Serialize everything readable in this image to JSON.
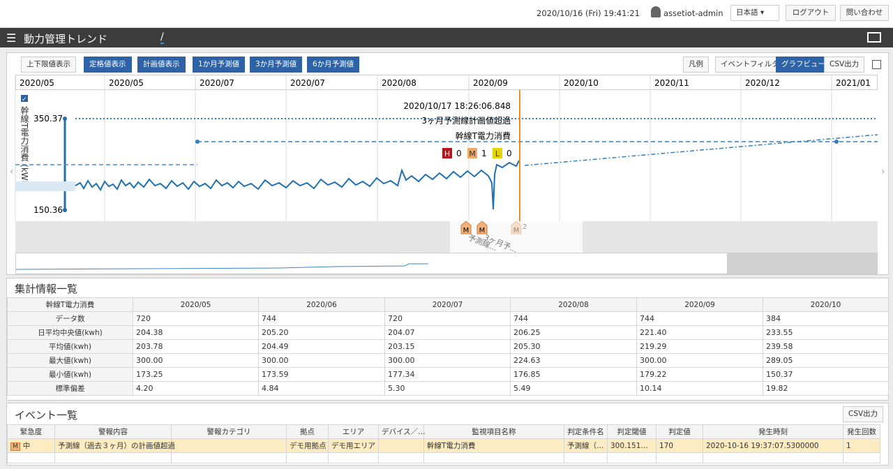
{
  "topbar": {
    "datetime": "2020/10/16 (Fri) 19:41:21",
    "user": "assetiot-admin",
    "language": "日本語",
    "logout": "ログアウト",
    "contact": "問い合わせ"
  },
  "header": {
    "title": "動力管理トレンド",
    "path": "/"
  },
  "toolbar": {
    "left": [
      {
        "label": "上下限値表示",
        "active": false
      },
      {
        "label": "定格値表示",
        "active": true
      },
      {
        "label": "計画値表示",
        "active": true
      },
      {
        "label": "1か月予測値",
        "active": true
      },
      {
        "label": "3か月予測値",
        "active": true
      },
      {
        "label": "6か月予測値",
        "active": true
      }
    ],
    "right": [
      {
        "label": "凡例",
        "active": false
      },
      {
        "label": "イベントフィルタ",
        "active": false
      },
      {
        "label": "グラフビュー",
        "active": true
      },
      {
        "label": "CSV出力",
        "active": false
      }
    ]
  },
  "timeline": [
    "2020/05",
    "2020/05",
    "2020/07",
    "2020/07",
    "2020/08",
    "2020/09",
    "2020/10",
    "2020/11",
    "2020/12",
    "2021/01"
  ],
  "trend": {
    "axis_label": "幹線T電力消費 (kWh)",
    "max": "350.37",
    "min": "150.36",
    "tooltip": {
      "time": "2020/10/17 18:26:06.848",
      "event": "3ヶ月予測線計画値超過",
      "item": "幹線T電力消費",
      "counts": [
        {
          "level": "H",
          "count": "0"
        },
        {
          "level": "M",
          "count": "1"
        },
        {
          "level": "L",
          "count": "0"
        }
      ]
    },
    "markers": [
      {
        "badge": "M",
        "label": "予測線..."
      },
      {
        "badge": "M",
        "label": "3ヶ月予..."
      },
      {
        "badge": "M",
        "label": "2"
      }
    ]
  },
  "stats": {
    "title": "集計情報一覧",
    "header": [
      "幹線T電力消費",
      "2020/05",
      "2020/06",
      "2020/07",
      "2020/08",
      "2020/09",
      "2020/10"
    ],
    "rows": [
      [
        "データ数",
        "720",
        "744",
        "720",
        "744",
        "744",
        "384"
      ],
      [
        "日平均中央値(kwh)",
        "204.38",
        "205.20",
        "204.07",
        "206.25",
        "221.40",
        "233.55"
      ],
      [
        "平均値(kwh)",
        "203.78",
        "204.49",
        "203.15",
        "205.30",
        "219.29",
        "239.58"
      ],
      [
        "最大値(kwh)",
        "300.00",
        "300.00",
        "300.00",
        "224.63",
        "300.00",
        "289.05"
      ],
      [
        "最小値(kwh)",
        "173.25",
        "173.59",
        "177.34",
        "176.85",
        "179.22",
        "150.37"
      ],
      [
        "標準偏差",
        "4.20",
        "4.84",
        "5.30",
        "5.49",
        "10.14",
        "19.82"
      ]
    ]
  },
  "events": {
    "title": "イベント一覧",
    "csv": "CSV出力",
    "columns": [
      "緊急度",
      "警報内容",
      "警報カテゴリ",
      "拠点",
      "エリア",
      "デバイス／…",
      "監視項目名称",
      "判定条件名",
      "判定閾値",
      "判定値",
      "発生時刻",
      "発生回数"
    ],
    "rows": [
      {
        "badge": "M",
        "cells": [
          "中",
          "予測線（過去３ヶ月）の計画値超過",
          null,
          "デモ用拠点",
          "デモ用エリア",
          null,
          "幹線T電力消費",
          "予測線（…",
          "300.151…",
          "170",
          "2020-10-16 19:37:07.5300000",
          "1"
        ]
      }
    ]
  }
}
